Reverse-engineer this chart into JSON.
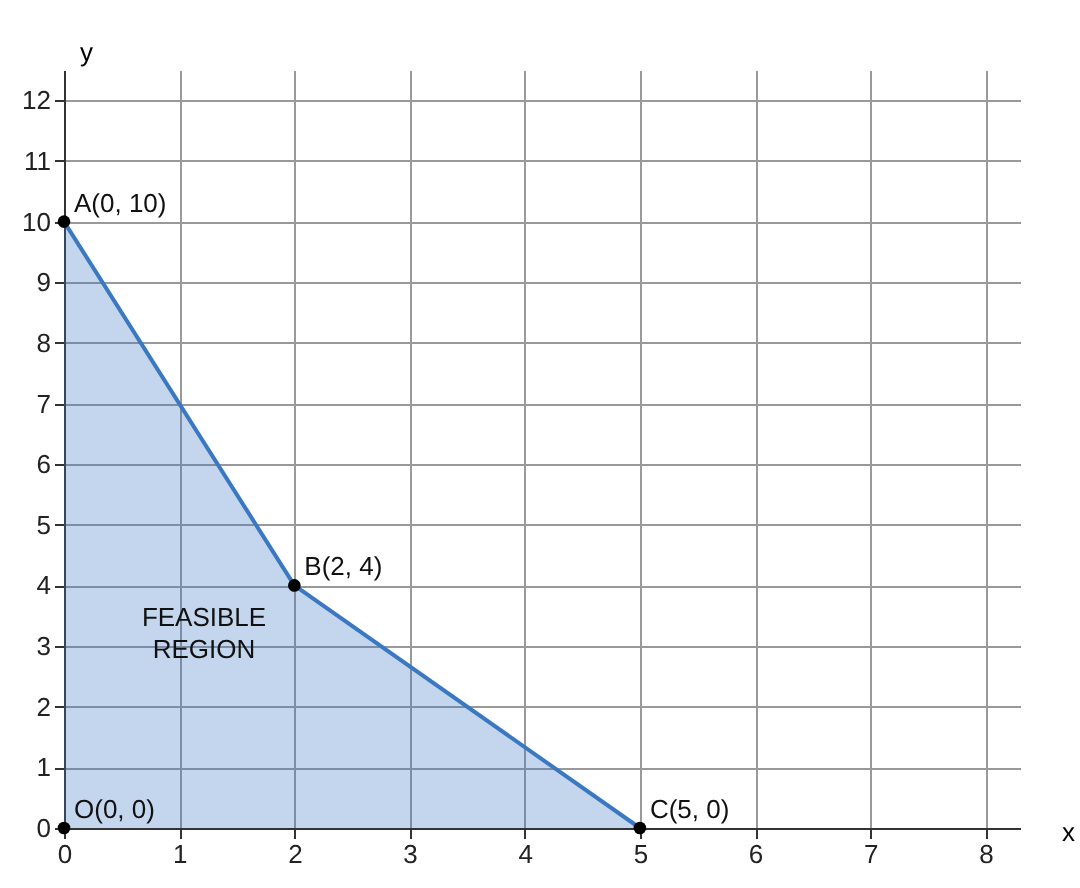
{
  "chart_data": {
    "type": "area",
    "xlabel": "x",
    "ylabel": "y",
    "series": [
      {
        "color": "#3a78c2",
        "x": [
          0,
          2,
          5
        ],
        "values": [
          10,
          4,
          0
        ]
      },
      {
        "type": "scatter",
        "color": "#000000",
        "marker": "circle",
        "x": [
          0,
          0,
          2,
          5
        ],
        "values": [
          0,
          10,
          4,
          0
        ]
      }
    ],
    "annotations": [
      {
        "text": "O(0, 0)",
        "x": 0,
        "y": 0
      },
      {
        "text": "A(0, 10)",
        "x": 0,
        "y": 10
      },
      {
        "text": "B(2, 4)",
        "x": 2,
        "y": 4
      },
      {
        "text": "C(5, 0)",
        "x": 5,
        "y": 0
      },
      "FEASIBLE REGION"
    ],
    "xlim": [
      0,
      8.3
    ],
    "ylim": [
      0,
      12.5
    ],
    "xticks": [
      0,
      1,
      2,
      3,
      4,
      5,
      6,
      7,
      8
    ],
    "yticks": [
      0,
      1,
      2,
      3,
      4,
      5,
      6,
      7,
      8,
      9,
      10,
      11,
      12
    ],
    "grid": true
  }
}
